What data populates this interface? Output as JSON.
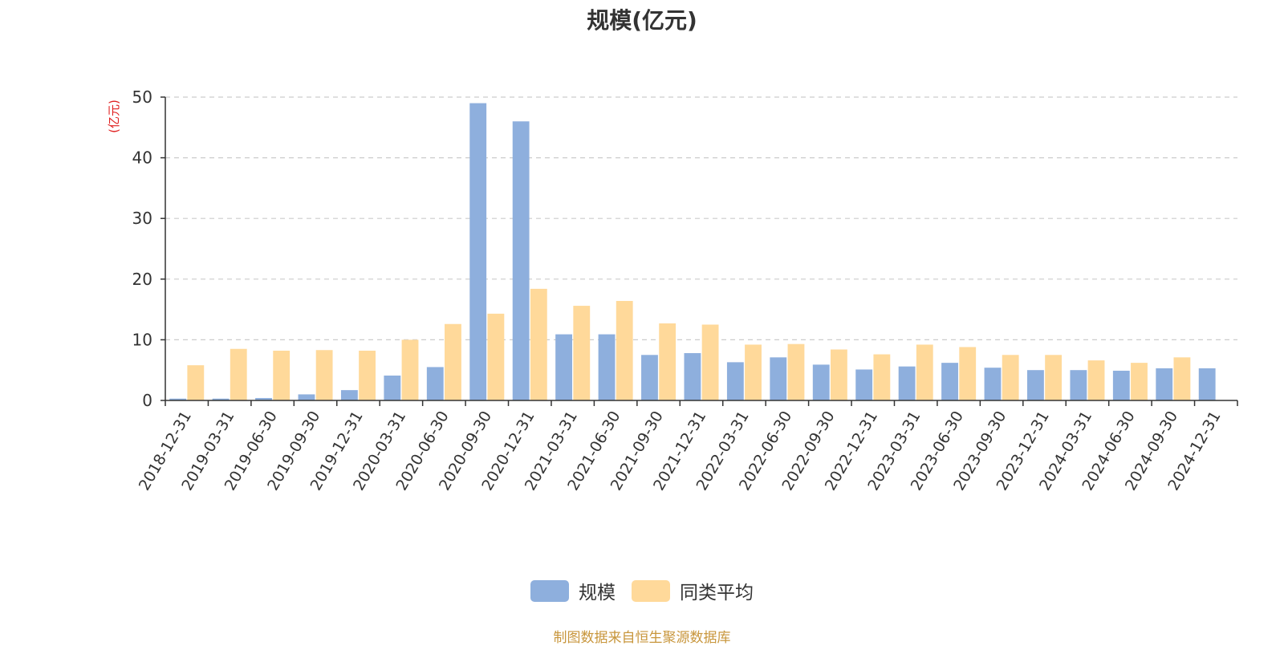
{
  "chart_data": {
    "type": "bar",
    "title": "规模(亿元)",
    "y_unit_label": "(亿元)",
    "ylim": [
      0,
      50
    ],
    "yticks": [
      0,
      10,
      20,
      30,
      40,
      50
    ],
    "grid": "horizontal dashed",
    "legend_position": "bottom",
    "categories": [
      "2018-12-31",
      "2019-03-31",
      "2019-06-30",
      "2019-09-30",
      "2019-12-31",
      "2020-03-31",
      "2020-06-30",
      "2020-09-30",
      "2020-12-31",
      "2021-03-31",
      "2021-06-30",
      "2021-09-30",
      "2021-12-31",
      "2022-03-31",
      "2022-06-30",
      "2022-09-30",
      "2022-12-31",
      "2023-03-31",
      "2023-06-30",
      "2023-09-30",
      "2023-12-31",
      "2024-03-31",
      "2024-06-30",
      "2024-09-30",
      "2024-12-31"
    ],
    "series": [
      {
        "name": "规模",
        "color": "#8eafdd",
        "values": [
          0.3,
          0.3,
          0.4,
          1.0,
          1.7,
          4.1,
          5.5,
          49.0,
          46.0,
          10.9,
          10.9,
          7.5,
          7.8,
          6.3,
          7.1,
          5.9,
          5.1,
          5.6,
          6.2,
          5.4,
          5.0,
          5.0,
          4.9,
          5.3,
          5.3
        ]
      },
      {
        "name": "同类平均",
        "color": "#ffd99a",
        "values": [
          5.8,
          8.5,
          8.2,
          8.3,
          8.2,
          10.0,
          12.6,
          14.3,
          18.4,
          15.6,
          16.4,
          12.7,
          12.5,
          9.2,
          9.3,
          8.4,
          7.6,
          9.2,
          8.8,
          7.5,
          7.5,
          6.6,
          6.2,
          7.1,
          null
        ]
      }
    ]
  },
  "source_note": "制图数据来自恒生聚源数据库"
}
